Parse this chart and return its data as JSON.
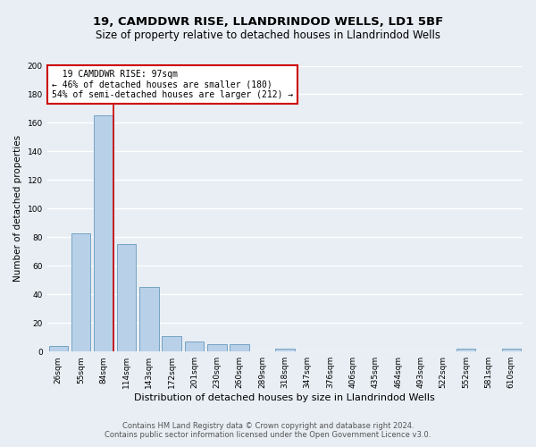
{
  "title1": "19, CAMDDWR RISE, LLANDRINDOD WELLS, LD1 5BF",
  "title2": "Size of property relative to detached houses in Llandrindod Wells",
  "xlabel": "Distribution of detached houses by size in Llandrindod Wells",
  "ylabel": "Number of detached properties",
  "bin_labels": [
    "26sqm",
    "55sqm",
    "84sqm",
    "114sqm",
    "143sqm",
    "172sqm",
    "201sqm",
    "230sqm",
    "260sqm",
    "289sqm",
    "318sqm",
    "347sqm",
    "376sqm",
    "406sqm",
    "435sqm",
    "464sqm",
    "493sqm",
    "522sqm",
    "552sqm",
    "581sqm",
    "610sqm"
  ],
  "bar_heights": [
    4,
    83,
    165,
    75,
    45,
    11,
    7,
    5,
    5,
    0,
    2,
    0,
    0,
    0,
    0,
    0,
    0,
    0,
    2,
    0,
    2
  ],
  "bar_color": "#b8d0e8",
  "bar_edge_color": "#6699bb",
  "background_color": "#e8eef4",
  "grid_color": "#ffffff",
  "property_label": "19 CAMDDWR RISE: 97sqm",
  "pct_smaller": 46,
  "n_smaller": 180,
  "pct_larger_semi": 54,
  "n_larger_semi": 212,
  "red_line_bin_index": 2,
  "red_line_color": "#cc0000",
  "annotation_box_color": "#ffffff",
  "annotation_box_edge_color": "#cc0000",
  "ylim": [
    0,
    200
  ],
  "yticks": [
    0,
    20,
    40,
    60,
    80,
    100,
    120,
    140,
    160,
    180,
    200
  ],
  "footnote1": "Contains HM Land Registry data © Crown copyright and database right 2024.",
  "footnote2": "Contains public sector information licensed under the Open Government Licence v3.0.",
  "title1_fontsize": 9.5,
  "title2_fontsize": 8.5,
  "xlabel_fontsize": 8,
  "ylabel_fontsize": 7.5,
  "tick_fontsize": 6.5,
  "annotation_fontsize": 7,
  "footnote_fontsize": 6
}
